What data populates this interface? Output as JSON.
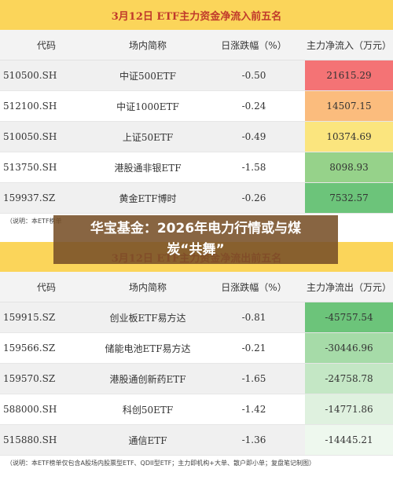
{
  "table1": {
    "title": "3月12日 ETF主力资金净流入前五名",
    "headers": [
      "代码",
      "场内简称",
      "日涨跌幅（%）",
      "主力净流入（万元）"
    ],
    "rows": [
      {
        "code": "510500.SH",
        "name": "中证500ETF",
        "change": "-0.50",
        "flow": "21615.29",
        "color": "#f47375"
      },
      {
        "code": "512100.SH",
        "name": "中证1000ETF",
        "change": "-0.24",
        "flow": "14507.15",
        "color": "#fbbc7d"
      },
      {
        "code": "510050.SH",
        "name": "上证50ETF",
        "change": "-0.49",
        "flow": "10374.69",
        "color": "#fbe57e"
      },
      {
        "code": "513750.SH",
        "name": "港股通非银ETF",
        "change": "-1.58",
        "flow": "8098.93",
        "color": "#96d28a"
      },
      {
        "code": "159937.SZ",
        "name": "黄金ETF博时",
        "change": "-0.26",
        "flow": "7532.57",
        "color": "#6cc47a"
      }
    ],
    "note": "（说明：本ETF榜单"
  },
  "table2": {
    "title": "3月12日 ETF主力资金净流出前五名",
    "headers": [
      "代码",
      "场内简称",
      "日涨跌幅（%）",
      "主力净流出（万元）"
    ],
    "rows": [
      {
        "code": "159915.SZ",
        "name": "创业板ETF易方达",
        "change": "-0.81",
        "flow": "-45757.54",
        "color": "#6cc47a"
      },
      {
        "code": "159566.SZ",
        "name": "储能电池ETF易方达",
        "change": "-0.21",
        "flow": "-30446.96",
        "color": "#a6dba8"
      },
      {
        "code": "159570.SZ",
        "name": "港股通创新药ETF",
        "change": "-1.65",
        "flow": "-24758.78",
        "color": "#c4e7c5"
      },
      {
        "code": "588000.SH",
        "name": "科创50ETF",
        "change": "-1.42",
        "flow": "-14771.86",
        "color": "#dff1df"
      },
      {
        "code": "515880.SH",
        "name": "通信ETF",
        "change": "-1.36",
        "flow": "-14445.21",
        "color": "#eef8ee"
      }
    ],
    "note": "（说明：本ETF榜单仅包含A股场内股票型ETF、QDII型ETF；主力即机构+大单、散户即小单；复盘笔记制图）"
  },
  "overlay": {
    "line1": "华宝基金：2026年电力行情或与煤",
    "line2": "炭“共舞”"
  }
}
